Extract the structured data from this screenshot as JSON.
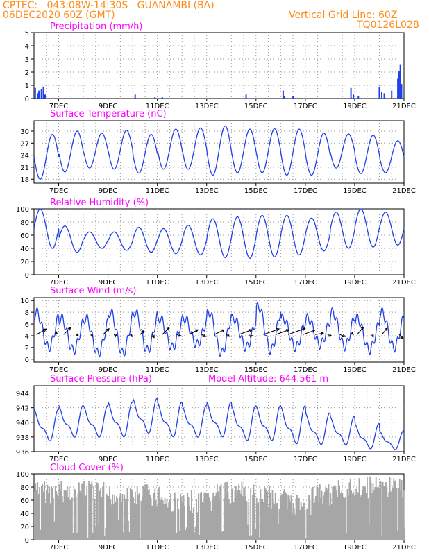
{
  "header": {
    "line1": "CPTEC:   043:08W-14:30S   GUANAMBI (BA)",
    "line2": "06DEC2020 60Z (GMT)",
    "grid_note": "Vertical Grid Line: 60Z",
    "code": "TQ0126L028"
  },
  "colors": {
    "header": "#ff8c1a",
    "title": "#ff00ff",
    "line": "#1f3fe8",
    "cloud": "#a6a6a6",
    "arrow": "#000000"
  },
  "x_axis": {
    "start_day": 6,
    "end_day": 21,
    "dates": [
      "7DEC",
      "9DEC",
      "11DEC",
      "13DEC",
      "15DEC",
      "17DEC",
      "19DEC",
      "21DEC"
    ]
  },
  "chart_data": [
    {
      "id": "precipitation",
      "type": "bar",
      "title": "Precipitation (mm/h)",
      "ylim": [
        0,
        5
      ],
      "yticks": [
        0,
        1,
        2,
        3,
        4,
        5
      ],
      "x_days": [
        6.05,
        6.15,
        6.2,
        6.3,
        6.38,
        6.45,
        10.1,
        10.9,
        11.2,
        14.6,
        16.1,
        16.15,
        16.5,
        18.85,
        18.95,
        19.15,
        20.0,
        20.1,
        20.2,
        20.5,
        20.75,
        20.8,
        20.85,
        20.9
      ],
      "values": [
        0.8,
        0.4,
        0.6,
        0.7,
        0.9,
        0.3,
        0.3,
        0.1,
        0.1,
        0.3,
        0.6,
        0.2,
        0.2,
        0.8,
        0.3,
        0.2,
        0.9,
        0.5,
        0.4,
        0.6,
        1.5,
        2.1,
        2.6,
        1.1
      ]
    },
    {
      "id": "temperature",
      "type": "line",
      "title": "Surface Temperature (nC)",
      "ylim": [
        17,
        32.6
      ],
      "yticks": [
        18,
        21,
        24,
        27,
        30
      ],
      "min": [
        18,
        19.8,
        20.8,
        20.5,
        19.5,
        20.5,
        20.5,
        19,
        19.6,
        19.6,
        19,
        19,
        20.8,
        19.4,
        19.6
      ],
      "max": [
        29.2,
        30,
        29.5,
        30.2,
        29.2,
        30.5,
        30.8,
        31.3,
        30.5,
        30.6,
        30.5,
        29.5,
        29.3,
        29,
        27.6
      ]
    },
    {
      "id": "humidity",
      "type": "line",
      "title": "Relative Humidity (%)",
      "ylim": [
        0,
        100
      ],
      "yticks": [
        0,
        20,
        40,
        60,
        80,
        100
      ],
      "max": [
        100,
        74,
        65,
        65,
        72,
        70,
        75,
        85,
        88,
        90,
        90,
        86,
        95,
        100,
        95
      ],
      "min": [
        40,
        34,
        40,
        37,
        34,
        32,
        30,
        26,
        25,
        27,
        30,
        36,
        40,
        42,
        45
      ]
    },
    {
      "id": "wind",
      "type": "line",
      "title": "Surface Wind (m/s)",
      "ylim": [
        -0.5,
        10.5
      ],
      "yticks": [
        0,
        2,
        4,
        6,
        8,
        10
      ],
      "speed_hi": [
        8,
        7,
        7,
        8,
        8,
        7,
        7,
        8,
        7,
        9,
        7,
        7,
        8,
        7,
        8,
        9
      ],
      "speed_lo": [
        2,
        1.5,
        1,
        1,
        1.5,
        2,
        2.5,
        1,
        2,
        1.5,
        2,
        2.5,
        2.2,
        1.6,
        2
      ],
      "barbs": [
        {
          "day": 6.1,
          "dir": 240,
          "len": 16
        },
        {
          "day": 6.9,
          "dir": 180,
          "len": 4
        },
        {
          "day": 7.2,
          "dir": 225,
          "len": 14
        },
        {
          "day": 7.7,
          "dir": 300,
          "len": 4
        },
        {
          "day": 8.3,
          "dir": 315,
          "len": 4
        },
        {
          "day": 8.8,
          "dir": 225,
          "len": 12
        },
        {
          "day": 9.3,
          "dir": 0,
          "len": 3
        },
        {
          "day": 9.9,
          "dir": 315,
          "len": 4
        },
        {
          "day": 10.3,
          "dir": 225,
          "len": 8
        },
        {
          "day": 10.8,
          "dir": 330,
          "len": 5
        },
        {
          "day": 11.2,
          "dir": 225,
          "len": 14
        },
        {
          "day": 11.8,
          "dir": 290,
          "len": 6
        },
        {
          "day": 12.3,
          "dir": 240,
          "len": 14
        },
        {
          "day": 12.8,
          "dir": 300,
          "len": 6
        },
        {
          "day": 13.3,
          "dir": 245,
          "len": 16
        },
        {
          "day": 13.8,
          "dir": 300,
          "len": 5
        },
        {
          "day": 14.3,
          "dir": 250,
          "len": 20
        },
        {
          "day": 14.8,
          "dir": 10,
          "len": 4
        },
        {
          "day": 15.3,
          "dir": 250,
          "len": 24
        },
        {
          "day": 15.8,
          "dir": 250,
          "len": 20
        },
        {
          "day": 16.3,
          "dir": 250,
          "len": 26
        },
        {
          "day": 16.9,
          "dir": 250,
          "len": 18
        },
        {
          "day": 17.4,
          "dir": 260,
          "len": 12
        },
        {
          "day": 17.9,
          "dir": 290,
          "len": 6
        },
        {
          "day": 18.4,
          "dir": 290,
          "len": 8
        },
        {
          "day": 18.9,
          "dir": 180,
          "len": 3
        },
        {
          "day": 19.1,
          "dir": 220,
          "len": 14
        },
        {
          "day": 19.7,
          "dir": 330,
          "len": 4
        },
        {
          "day": 20.1,
          "dir": 220,
          "len": 12
        },
        {
          "day": 20.8,
          "dir": 315,
          "len": 8
        }
      ]
    },
    {
      "id": "pressure",
      "type": "line",
      "title": "Surface Pressure (hPa)",
      "subtitle": "Model Altitude: 644.561 m",
      "ylim": [
        936,
        945
      ],
      "yticks": [
        936,
        938,
        940,
        942,
        944
      ],
      "hi": [
        942,
        942.5,
        942.5,
        943,
        943.5,
        943,
        942.5,
        943,
        942.5,
        942.5,
        942.5,
        941.5,
        941,
        940,
        939,
        938
      ],
      "lo": [
        937,
        937.5,
        937.5,
        937.5,
        938,
        937.5,
        937.5,
        937.5,
        937,
        937,
        936.5,
        936.5,
        936.5,
        936,
        936,
        936
      ]
    },
    {
      "id": "cloud",
      "type": "area",
      "title": "Cloud Cover (%)",
      "ylim": [
        0,
        100
      ],
      "yticks": [
        0,
        20,
        40,
        60,
        80,
        100
      ],
      "segments": [
        {
          "from": 6.0,
          "to": 8.8,
          "level": 90
        },
        {
          "from": 8.8,
          "to": 11.2,
          "level": 85
        },
        {
          "from": 11.2,
          "to": 13.2,
          "level": 75
        },
        {
          "from": 13.2,
          "to": 15.4,
          "level": 88
        },
        {
          "from": 15.4,
          "to": 16.2,
          "level": 82
        },
        {
          "from": 16.2,
          "to": 17.2,
          "level": 70
        },
        {
          "from": 17.2,
          "to": 18.2,
          "level": 85
        },
        {
          "from": 18.2,
          "to": 21.0,
          "level": 97
        }
      ]
    }
  ]
}
